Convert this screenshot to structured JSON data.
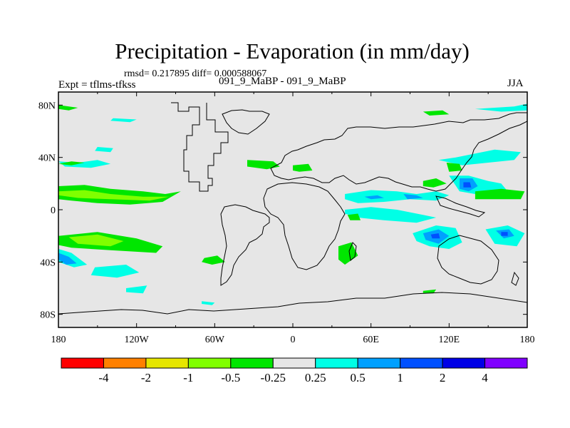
{
  "title": "Precipitation - Evaporation (in mm/day)",
  "stats": "rmsd= 0.217895 diff= 0.000588067",
  "expt_label": "Expt = tflms-tfkss",
  "cases_label": "091_9_MaBP - 091_9_MaBP",
  "season": "JJA",
  "chart_data": {
    "type": "heatmap",
    "title": "Precipitation - Evaporation (in mm/day)",
    "xlabel": "",
    "ylabel": "",
    "xlim": [
      -180,
      180
    ],
    "ylim": [
      -90,
      90
    ],
    "x_ticks": [
      {
        "value": -180,
        "label": "180"
      },
      {
        "value": -120,
        "label": "120W"
      },
      {
        "value": -60,
        "label": "60W"
      },
      {
        "value": 0,
        "label": "0"
      },
      {
        "value": 60,
        "label": "60E"
      },
      {
        "value": 120,
        "label": "120E"
      },
      {
        "value": 180,
        "label": "180"
      }
    ],
    "y_ticks": [
      {
        "value": 80,
        "label": "80N"
      },
      {
        "value": 40,
        "label": "40N"
      },
      {
        "value": 0,
        "label": "0"
      },
      {
        "value": -40,
        "label": "40S"
      },
      {
        "value": -80,
        "label": "80S"
      }
    ],
    "background_color": "#e6e6e6",
    "levels": [
      "-4",
      "-2",
      "-1",
      "-0.5",
      "-0.25",
      "0.25",
      "0.5",
      "1",
      "2",
      "4"
    ],
    "bin_colors": [
      "#ff0000",
      "#ff8000",
      "#e6e600",
      "#80ff00",
      "#00e600",
      "#e6e6e6",
      "#00ffe6",
      "#00a0ff",
      "#0050ff",
      "#0000e6",
      "#8000ff"
    ],
    "features": [
      {
        "name": "N Pacific positive",
        "bin": 6,
        "points": [
          [
            -180,
            37
          ],
          [
            -165,
            36
          ],
          [
            -150,
            38
          ],
          [
            -140,
            35
          ],
          [
            -155,
            32
          ],
          [
            -175,
            33
          ]
        ]
      },
      {
        "name": "N Pacific negative",
        "bin": 4,
        "points": [
          [
            -180,
            35
          ],
          [
            -170,
            34
          ],
          [
            -160,
            36
          ],
          [
            -170,
            37
          ]
        ]
      },
      {
        "name": "NE Pacific positive",
        "bin": 6,
        "points": [
          [
            -152,
            45
          ],
          [
            -140,
            44
          ],
          [
            -138,
            47
          ],
          [
            -150,
            48
          ]
        ]
      },
      {
        "name": "Tropical Pacific band",
        "bin": 4,
        "points": [
          [
            -180,
            18
          ],
          [
            -160,
            19
          ],
          [
            -140,
            16
          ],
          [
            -115,
            14
          ],
          [
            -98,
            12
          ],
          [
            -86,
            14
          ],
          [
            -100,
            6
          ],
          [
            -125,
            4
          ],
          [
            -150,
            5
          ],
          [
            -170,
            7
          ],
          [
            -180,
            8
          ]
        ]
      },
      {
        "name": "Tropical Pacific core",
        "bin": 3,
        "points": [
          [
            -180,
            14
          ],
          [
            -160,
            15
          ],
          [
            -140,
            12
          ],
          [
            -115,
            10
          ],
          [
            -95,
            10
          ],
          [
            -110,
            7
          ],
          [
            -140,
            8
          ],
          [
            -165,
            9
          ],
          [
            -180,
            11
          ]
        ]
      },
      {
        "name": "S Pacific band",
        "bin": 4,
        "points": [
          [
            -180,
            -20
          ],
          [
            -150,
            -17
          ],
          [
            -120,
            -22
          ],
          [
            -100,
            -28
          ],
          [
            -105,
            -33
          ],
          [
            -140,
            -31
          ],
          [
            -170,
            -29
          ],
          [
            -180,
            -27
          ]
        ]
      },
      {
        "name": "S Pacific core",
        "bin": 3,
        "points": [
          [
            -172,
            -21
          ],
          [
            -150,
            -19
          ],
          [
            -130,
            -24
          ],
          [
            -140,
            -28
          ],
          [
            -165,
            -26
          ]
        ]
      },
      {
        "name": "Dateline SH positive",
        "bin": 6,
        "points": [
          [
            -180,
            -30
          ],
          [
            -170,
            -33
          ],
          [
            -158,
            -42
          ],
          [
            -168,
            -44
          ],
          [
            -180,
            -40
          ]
        ]
      },
      {
        "name": "Dateline SH core",
        "bin": 7,
        "points": [
          [
            -180,
            -33
          ],
          [
            -172,
            -36
          ],
          [
            -166,
            -41
          ],
          [
            -174,
            -42
          ],
          [
            -180,
            -38
          ]
        ]
      },
      {
        "name": "S Pacific positive",
        "bin": 6,
        "points": [
          [
            -152,
            -44
          ],
          [
            -128,
            -42
          ],
          [
            -118,
            -48
          ],
          [
            -135,
            -52
          ],
          [
            -155,
            -50
          ]
        ]
      },
      {
        "name": "S Pacific positive small",
        "bin": 6,
        "points": [
          [
            -128,
            -60
          ],
          [
            -112,
            -58
          ],
          [
            -115,
            -64
          ],
          [
            -128,
            -63
          ]
        ]
      },
      {
        "name": "S Atlantic negative",
        "bin": 4,
        "points": [
          [
            -68,
            -37
          ],
          [
            -58,
            -35
          ],
          [
            -52,
            -40
          ],
          [
            -62,
            -42
          ],
          [
            -70,
            -40
          ]
        ]
      },
      {
        "name": "Arctic Pacific negative",
        "bin": 4,
        "points": [
          [
            -180,
            80
          ],
          [
            -165,
            78
          ],
          [
            -172,
            76
          ],
          [
            -180,
            77
          ]
        ]
      },
      {
        "name": "Arctic positive",
        "bin": 6,
        "points": [
          [
            -138,
            70
          ],
          [
            -120,
            69
          ],
          [
            -125,
            67
          ],
          [
            -140,
            68
          ]
        ]
      },
      {
        "name": "Antarctic positive",
        "bin": 6,
        "points": [
          [
            -70,
            -70
          ],
          [
            -60,
            -71
          ],
          [
            -62,
            -73
          ],
          [
            -70,
            -72
          ]
        ]
      },
      {
        "name": "N Atlantic negative",
        "bin": 4,
        "points": [
          [
            -35,
            38
          ],
          [
            -15,
            37
          ],
          [
            -10,
            33
          ],
          [
            -20,
            31
          ],
          [
            -35,
            33
          ]
        ]
      },
      {
        "name": "N Africa negative",
        "bin": 4,
        "points": [
          [
            0,
            34
          ],
          [
            12,
            35
          ],
          [
            15,
            30
          ],
          [
            5,
            29
          ],
          [
            0,
            30
          ]
        ]
      },
      {
        "name": "Indian negative",
        "bin": 4,
        "points": [
          [
            35,
            -28
          ],
          [
            45,
            -25
          ],
          [
            50,
            -35
          ],
          [
            40,
            -42
          ],
          [
            35,
            -38
          ]
        ]
      },
      {
        "name": "Indian positive north",
        "bin": 6,
        "points": [
          [
            40,
            12
          ],
          [
            60,
            15
          ],
          [
            80,
            14
          ],
          [
            95,
            12
          ],
          [
            110,
            14
          ],
          [
            120,
            11
          ],
          [
            110,
            7
          ],
          [
            90,
            8
          ],
          [
            70,
            6
          ],
          [
            50,
            5
          ],
          [
            40,
            8
          ]
        ]
      },
      {
        "name": "Indian core north",
        "bin": 7,
        "points": [
          [
            55,
            10
          ],
          [
            65,
            11
          ],
          [
            70,
            9
          ],
          [
            60,
            8
          ]
        ]
      },
      {
        "name": "Indian core north 2",
        "bin": 7,
        "points": [
          [
            85,
            12
          ],
          [
            95,
            11
          ],
          [
            100,
            9
          ],
          [
            88,
            8
          ]
        ]
      },
      {
        "name": "Bay negative",
        "bin": 4,
        "points": [
          [
            100,
            22
          ],
          [
            110,
            24
          ],
          [
            118,
            20
          ],
          [
            108,
            17
          ],
          [
            100,
            18
          ]
        ]
      },
      {
        "name": "Indian positive mid",
        "bin": 6,
        "points": [
          [
            40,
            0
          ],
          [
            60,
            2
          ],
          [
            80,
            0
          ],
          [
            100,
            -4
          ],
          [
            110,
            -6
          ],
          [
            95,
            -10
          ],
          [
            70,
            -8
          ],
          [
            50,
            -6
          ],
          [
            40,
            -3
          ]
        ]
      },
      {
        "name": "Indian negative mid",
        "bin": 4,
        "points": [
          [
            42,
            -4
          ],
          [
            50,
            -3
          ],
          [
            52,
            -8
          ],
          [
            44,
            -8
          ]
        ]
      },
      {
        "name": "SE Indian positive",
        "bin": 6,
        "points": [
          [
            92,
            -18
          ],
          [
            110,
            -12
          ],
          [
            125,
            -14
          ],
          [
            130,
            -25
          ],
          [
            120,
            -30
          ],
          [
            105,
            -28
          ],
          [
            95,
            -24
          ]
        ]
      },
      {
        "name": "SE Indian core",
        "bin": 7,
        "points": [
          [
            100,
            -18
          ],
          [
            112,
            -15
          ],
          [
            120,
            -20
          ],
          [
            112,
            -26
          ],
          [
            102,
            -23
          ]
        ]
      },
      {
        "name": "SE Indian center",
        "bin": 8,
        "points": [
          [
            106,
            -19
          ],
          [
            112,
            -18
          ],
          [
            113,
            -22
          ],
          [
            107,
            -22
          ]
        ]
      },
      {
        "name": "W Pacific positive",
        "bin": 6,
        "points": [
          [
            120,
            26
          ],
          [
            135,
            26
          ],
          [
            150,
            22
          ],
          [
            160,
            20
          ],
          [
            165,
            14
          ],
          [
            155,
            10
          ],
          [
            140,
            12
          ],
          [
            128,
            14
          ]
        ]
      },
      {
        "name": "W Pacific core",
        "bin": 7,
        "points": [
          [
            128,
            24
          ],
          [
            138,
            24
          ],
          [
            142,
            18
          ],
          [
            135,
            14
          ],
          [
            128,
            16
          ]
        ]
      },
      {
        "name": "W Pacific center",
        "bin": 8,
        "points": [
          [
            131,
            21
          ],
          [
            136,
            21
          ],
          [
            137,
            17
          ],
          [
            131,
            17
          ]
        ]
      },
      {
        "name": "W Pacific negative",
        "bin": 4,
        "points": [
          [
            140,
            14
          ],
          [
            160,
            16
          ],
          [
            178,
            14
          ],
          [
            175,
            8
          ],
          [
            155,
            8
          ],
          [
            140,
            8
          ]
        ]
      },
      {
        "name": "SW Pacific positive",
        "bin": 6,
        "points": [
          [
            148,
            -15
          ],
          [
            165,
            -12
          ],
          [
            178,
            -18
          ],
          [
            172,
            -28
          ],
          [
            155,
            -26
          ]
        ]
      },
      {
        "name": "SW Pacific core",
        "bin": 7,
        "points": [
          [
            156,
            -16
          ],
          [
            166,
            -15
          ],
          [
            170,
            -20
          ],
          [
            162,
            -22
          ]
        ]
      },
      {
        "name": "SW Pacific center",
        "bin": 8,
        "points": [
          [
            160,
            -17
          ],
          [
            165,
            -17
          ],
          [
            165,
            -20
          ],
          [
            160,
            -20
          ]
        ]
      },
      {
        "name": "NW Pacific positive",
        "bin": 6,
        "points": [
          [
            112,
            38
          ],
          [
            125,
            40
          ],
          [
            140,
            43
          ],
          [
            155,
            46
          ],
          [
            175,
            44
          ],
          [
            170,
            38
          ],
          [
            150,
            36
          ],
          [
            130,
            34
          ]
        ]
      },
      {
        "name": "NW Pacific negative",
        "bin": 4,
        "points": [
          [
            118,
            36
          ],
          [
            128,
            35
          ],
          [
            130,
            30
          ],
          [
            120,
            29
          ]
        ]
      },
      {
        "name": "Arctic N Pacific positive",
        "bin": 6,
        "points": [
          [
            140,
            77
          ],
          [
            170,
            79
          ],
          [
            180,
            81
          ],
          [
            180,
            76
          ],
          [
            160,
            75
          ]
        ]
      },
      {
        "name": "Arctic Atlantic negative",
        "bin": 4,
        "points": [
          [
            100,
            75
          ],
          [
            115,
            76
          ],
          [
            120,
            73
          ],
          [
            105,
            72
          ]
        ]
      },
      {
        "name": "Antarctic Indian negative",
        "bin": 4,
        "points": [
          [
            100,
            -62
          ],
          [
            110,
            -61
          ],
          [
            108,
            -64
          ],
          [
            100,
            -64
          ]
        ]
      }
    ]
  },
  "colorbar_labels": [
    "-4",
    "-2",
    "-1",
    "-0.5",
    "-0.25",
    "0.25",
    "0.5",
    "1",
    "2",
    "4"
  ]
}
